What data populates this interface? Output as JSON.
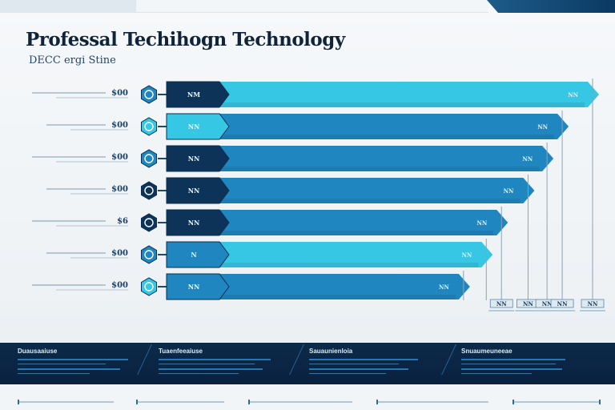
{
  "page": {
    "title": "Professal Techihogn Technology",
    "subtitle": "DECC ergi Stine"
  },
  "chart_data": {
    "type": "bar",
    "orientation": "horizontal",
    "title": "Professal Techihogn Technology",
    "subtitle": "DECC ergi Stine",
    "categories": [
      "1",
      "2",
      "3",
      "4",
      "5",
      "6",
      "7"
    ],
    "category_labels": [
      "$00",
      "$00",
      "$00",
      "$00",
      "$6",
      "$00",
      "$00"
    ],
    "bar_labels": [
      "NM",
      "NN",
      "NN",
      "NN",
      "NN",
      "N",
      "NN"
    ],
    "end_labels": [
      "NN",
      "NN",
      "NN",
      "NN",
      "NN",
      "NN",
      "NN"
    ],
    "bottom_labels": [
      "NN",
      "NN",
      "NN",
      "NN",
      "NN"
    ],
    "values": [
      100,
      92,
      88,
      83,
      76,
      72,
      66
    ],
    "xlim": [
      0,
      100
    ],
    "grid": false,
    "legend": "none",
    "colors": {
      "dark_navy": "#0e3358",
      "cyan": "#36c7e4",
      "mid_blue": "#1f86c0",
      "deep_blue": "#153f6b",
      "label_text": "#1b3f66"
    },
    "icon_names": [
      "hexagon-icon",
      "circle-gauge-icon"
    ]
  },
  "footer": {
    "columns": [
      {
        "heading": "Duausaaiuse"
      },
      {
        "heading": "Tuaenfeeaiuse"
      },
      {
        "heading": "Sauaunienloia"
      },
      {
        "heading": "Snuaumeuneeae"
      }
    ]
  }
}
